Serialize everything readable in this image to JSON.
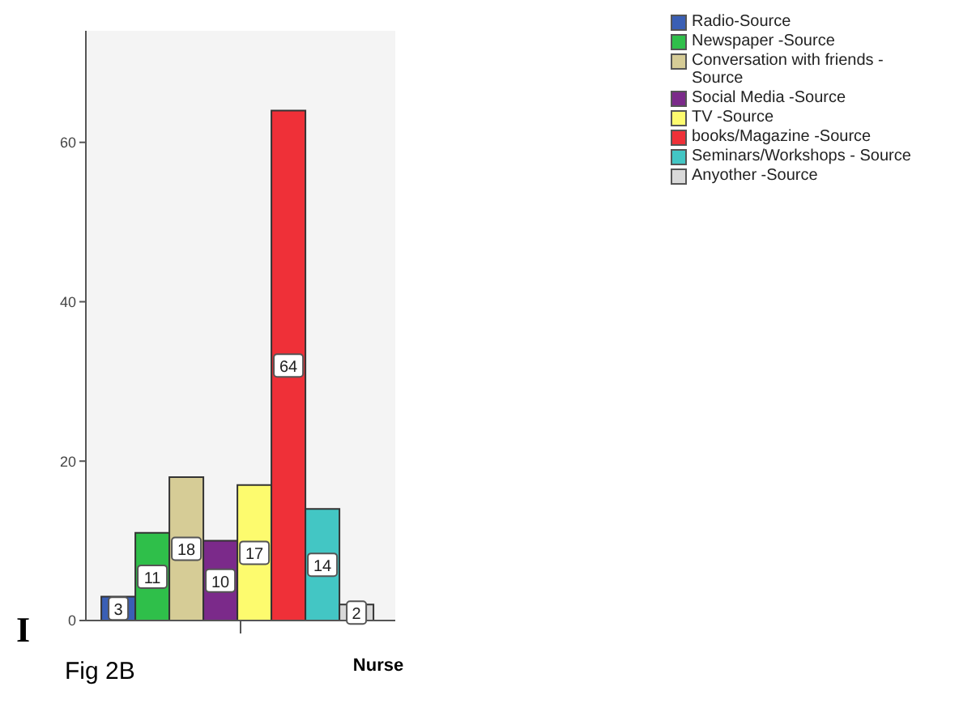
{
  "chart_data": {
    "type": "bar",
    "xlabel": "Nurse",
    "categories": [
      null
    ],
    "series": [
      {
        "name": "Radio-Source",
        "color": "#3a5fb5",
        "values": [
          3
        ]
      },
      {
        "name": "Newspaper -Source",
        "color": "#2fbf4a",
        "values": [
          11
        ]
      },
      {
        "name": "Conversation with friends - Source",
        "color": "#d6cc96",
        "values": [
          18
        ]
      },
      {
        "name": "Social Media -Source",
        "color": "#7b2a8a",
        "values": [
          10
        ]
      },
      {
        "name": "TV -Source",
        "color": "#fdfb6e",
        "values": [
          17
        ]
      },
      {
        "name": "books/Magazine -Source",
        "color": "#ef3038",
        "values": [
          64
        ]
      },
      {
        "name": "Seminars/Workshops - Source",
        "color": "#43c6c4",
        "values": [
          14
        ]
      },
      {
        "name": "Anyother -Source",
        "color": "#d9d9d9",
        "values": [
          2
        ]
      }
    ],
    "ylim": [
      0,
      74
    ],
    "yticks": [
      0,
      20,
      40,
      60
    ],
    "data_labels": true,
    "legend": "top right",
    "annotations": [
      "I",
      "Fig 2B"
    ]
  }
}
